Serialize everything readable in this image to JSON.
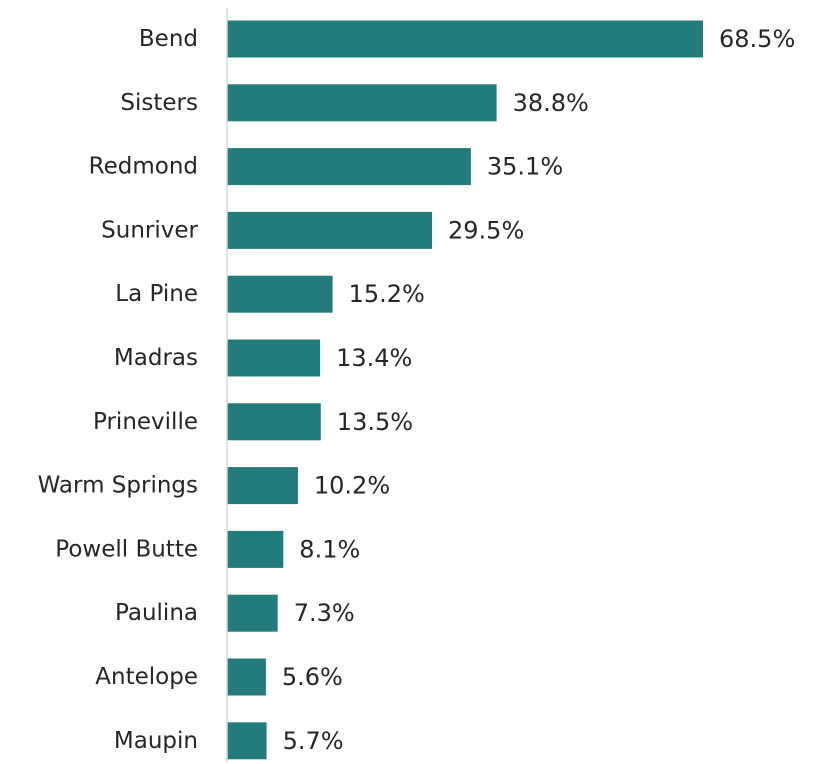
{
  "colors": {
    "bar": "#237b7b",
    "axis": "#d9d9d9",
    "text": "#262626",
    "background": "#ffffff"
  },
  "chart_data": {
    "type": "bar",
    "orientation": "horizontal",
    "title": "",
    "xlabel": "",
    "ylabel": "",
    "categories": [
      "Bend",
      "Sisters",
      "Redmond",
      "Sunriver",
      "La Pine",
      "Madras",
      "Prineville",
      "Warm Springs",
      "Powell Butte",
      "Paulina",
      "Antelope",
      "Maupin"
    ],
    "values": [
      68.5,
      38.8,
      35.1,
      29.5,
      15.2,
      13.4,
      13.5,
      10.2,
      8.1,
      7.3,
      5.6,
      5.7
    ],
    "value_labels": [
      "68.5%",
      "38.8%",
      "35.1%",
      "29.5%",
      "15.2%",
      "13.4%",
      "13.5%",
      "10.2%",
      "8.1%",
      "7.3%",
      "5.6%",
      "5.7%"
    ],
    "unit": "%",
    "xlim": [
      0,
      70
    ],
    "grid": false,
    "legend": "none"
  }
}
